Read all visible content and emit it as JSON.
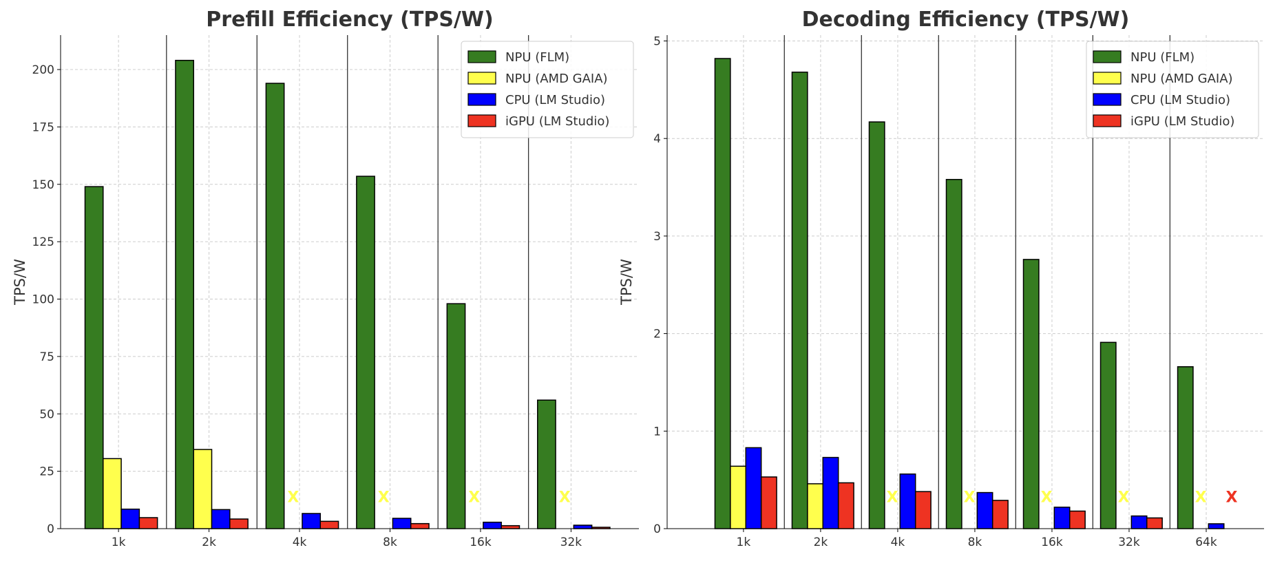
{
  "chart_data": [
    {
      "type": "bar",
      "title": "Prefill Efficiency (TPS/W)",
      "xlabel": "",
      "ylabel": "TPS/W",
      "categories": [
        "1k",
        "2k",
        "4k",
        "8k",
        "16k",
        "32k"
      ],
      "ylim": [
        0,
        215
      ],
      "yticks": [
        0,
        25,
        50,
        75,
        100,
        125,
        150,
        175,
        200
      ],
      "grid": true,
      "legend_position": "top-right",
      "missing_marker": "X",
      "series": [
        {
          "name": "NPU (FLM)",
          "color": "#367c21",
          "values": [
            149,
            204,
            194,
            153.5,
            98,
            56
          ]
        },
        {
          "name": "NPU (AMD GAIA)",
          "color": "#ffff4d",
          "values": [
            30.5,
            34.5,
            null,
            null,
            null,
            null
          ]
        },
        {
          "name": "CPU (LM Studio)",
          "color": "#0000ff",
          "values": [
            8.5,
            8.3,
            6.6,
            4.5,
            2.8,
            1.5
          ]
        },
        {
          "name": "iGPU (LM Studio)",
          "color": "#ee3322",
          "values": [
            4.8,
            4.2,
            3.2,
            2.2,
            1.3,
            0.6
          ]
        }
      ]
    },
    {
      "type": "bar",
      "title": "Decoding Efficiency (TPS/W)",
      "xlabel": "",
      "ylabel": "TPS/W",
      "categories": [
        "1k",
        "2k",
        "4k",
        "8k",
        "16k",
        "32k",
        "64k"
      ],
      "ylim": [
        0,
        5.06
      ],
      "yticks": [
        0,
        1,
        2,
        3,
        4,
        5
      ],
      "grid": true,
      "legend_position": "top-right",
      "missing_marker": "X",
      "series": [
        {
          "name": "NPU (FLM)",
          "color": "#367c21",
          "values": [
            4.82,
            4.68,
            4.17,
            3.58,
            2.76,
            1.91,
            1.66
          ]
        },
        {
          "name": "NPU (AMD GAIA)",
          "color": "#ffff4d",
          "values": [
            0.64,
            0.46,
            null,
            null,
            null,
            null,
            null
          ]
        },
        {
          "name": "CPU (LM Studio)",
          "color": "#0000ff",
          "values": [
            0.83,
            0.73,
            0.56,
            0.37,
            0.22,
            0.13,
            0.05
          ]
        },
        {
          "name": "iGPU (LM Studio)",
          "color": "#ee3322",
          "values": [
            0.53,
            0.47,
            0.38,
            0.29,
            0.18,
            0.11,
            null
          ]
        }
      ]
    }
  ]
}
